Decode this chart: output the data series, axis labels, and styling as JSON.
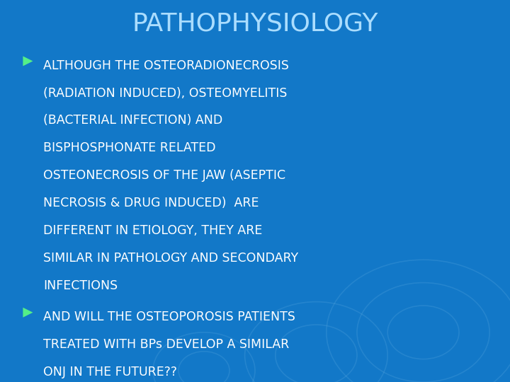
{
  "title": "PATHOPHYSIOLOGY",
  "title_color": "#AADDFF",
  "title_fontsize": 26,
  "background_color": "#1278C8",
  "bullet_color": "#55EE88",
  "text_color": "#FFFFFF",
  "bullet1_lines": [
    "ALTHOUGH THE OSTEORADIONECROSIS",
    "(RADIATION INDUCED), OSTEOMYELITIS",
    "(BACTERIAL INFECTION) AND",
    "BISPHOSPHONATE RELATED",
    "OSTEONECROSIS OF THE JAW (ASEPTIC",
    "NECROSIS & DRUG INDUCED)  ARE",
    "DIFFERENT IN ETIOLOGY, THEY ARE",
    "SIMILAR IN PATHOLOGY AND SECONDARY",
    "INFECTIONS"
  ],
  "bullet2_lines": [
    "AND WILL THE OSTEOPOROSIS PATIENTS",
    "TREATED WITH BPs DEVELOP A SIMILAR",
    "ONJ IN THE FUTURE??"
  ],
  "text_fontsize": 12.5,
  "figsize": [
    7.2,
    5.4
  ],
  "dpi": 100,
  "circles": [
    [
      0.83,
      0.13,
      0.19
    ],
    [
      0.83,
      0.13,
      0.13
    ],
    [
      0.83,
      0.13,
      0.07
    ],
    [
      0.62,
      0.07,
      0.14
    ],
    [
      0.62,
      0.07,
      0.08
    ],
    [
      0.4,
      0.03,
      0.1
    ],
    [
      0.4,
      0.03,
      0.05
    ]
  ]
}
